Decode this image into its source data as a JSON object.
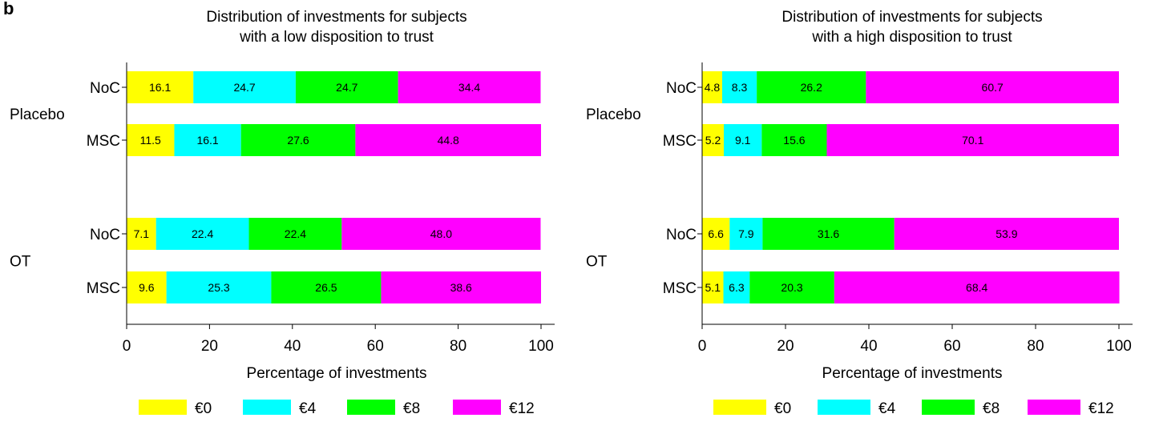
{
  "panel_label": "b",
  "colors": {
    "€0": "#ffff00",
    "€4": "#00ffff",
    "€8": "#00ff00",
    "€12": "#ff00ff"
  },
  "chart_data": [
    {
      "type": "bar",
      "orientation": "horizontal-stacked",
      "title": [
        "Distribution of investments for subjects",
        "with a low disposition to trust"
      ],
      "xlabel": "Percentage of investments",
      "xlim": [
        0,
        100
      ],
      "xticks": [
        "0",
        "20",
        "40",
        "60",
        "80",
        "100"
      ],
      "series_names": [
        "€0",
        "€4",
        "€8",
        "€12"
      ],
      "groups": [
        {
          "name": "Placebo",
          "bars": [
            {
              "category": "NoC",
              "values": [
                16.1,
                24.7,
                24.7,
                34.4
              ],
              "labels": [
                "16.1",
                "24.7",
                "24.7",
                "34.4"
              ]
            },
            {
              "category": "MSC",
              "values": [
                11.5,
                16.1,
                27.6,
                44.8
              ],
              "labels": [
                "11.5",
                "16.1",
                "27.6",
                "44.8"
              ]
            }
          ]
        },
        {
          "name": "OT",
          "bars": [
            {
              "category": "NoC",
              "values": [
                7.1,
                22.4,
                22.4,
                48.0
              ],
              "labels": [
                "7.1",
                "22.4",
                "22.4",
                "48.0"
              ]
            },
            {
              "category": "MSC",
              "values": [
                9.6,
                25.3,
                26.5,
                38.6
              ],
              "labels": [
                "9.6",
                "25.3",
                "26.5",
                "38.6"
              ]
            }
          ]
        }
      ],
      "legend": [
        "€0",
        "€4",
        "€8",
        "€12"
      ]
    },
    {
      "type": "bar",
      "orientation": "horizontal-stacked",
      "title": [
        "Distribution of investments for subjects",
        "with a high disposition to trust"
      ],
      "xlabel": "Percentage of investments",
      "xlim": [
        0,
        100
      ],
      "xticks": [
        "0",
        "20",
        "40",
        "60",
        "80",
        "100"
      ],
      "series_names": [
        "€0",
        "€4",
        "€8",
        "€12"
      ],
      "groups": [
        {
          "name": "Placebo",
          "bars": [
            {
              "category": "NoC",
              "values": [
                4.8,
                8.3,
                26.2,
                60.7
              ],
              "labels": [
                "4.8",
                "8.3",
                "26.2",
                "60.7"
              ]
            },
            {
              "category": "MSC",
              "values": [
                5.2,
                9.1,
                15.6,
                70.1
              ],
              "labels": [
                "5.2",
                "9.1",
                "15.6",
                "70.1"
              ]
            }
          ]
        },
        {
          "name": "OT",
          "bars": [
            {
              "category": "NoC",
              "values": [
                6.6,
                7.9,
                31.6,
                53.9
              ],
              "labels": [
                "6.6",
                "7.9",
                "31.6",
                "53.9"
              ]
            },
            {
              "category": "MSC",
              "values": [
                5.1,
                6.3,
                20.3,
                68.4
              ],
              "labels": [
                "5.1",
                "6.3",
                "20.3",
                "68.4"
              ]
            }
          ]
        }
      ],
      "legend": [
        "€0",
        "€4",
        "€8",
        "€12"
      ]
    }
  ]
}
